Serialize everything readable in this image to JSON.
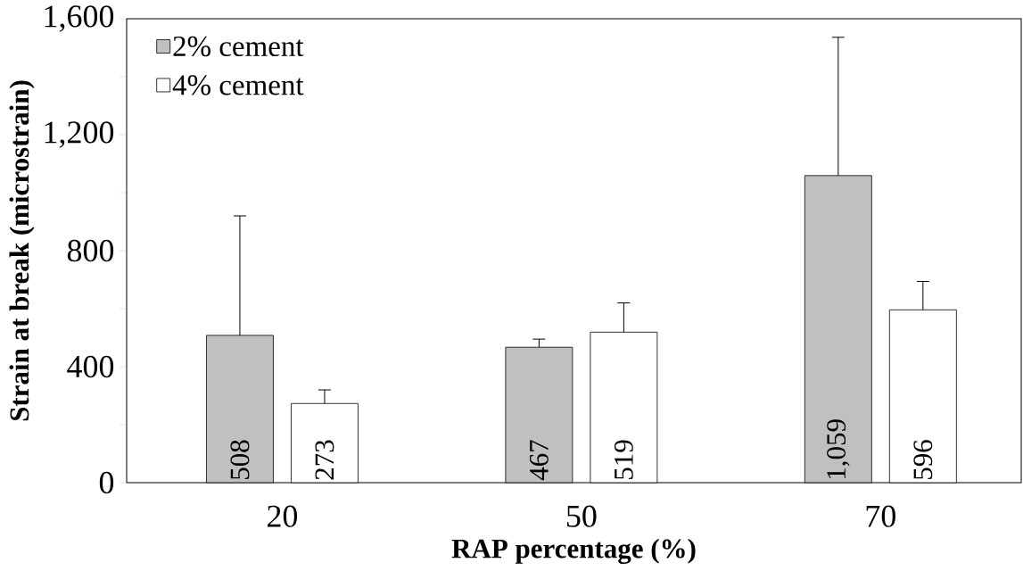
{
  "chart_data": {
    "type": "bar",
    "xlabel": "RAP percentage (%)",
    "ylabel": "Strain at break (microstrain)",
    "categories": [
      "20",
      "50",
      "70"
    ],
    "series": [
      {
        "name": "2% cement",
        "color": "#c0c0c0",
        "values": [
          508,
          467,
          1059
        ],
        "value_labels": [
          "508",
          "467",
          "1,059"
        ],
        "errors": [
          [
            508,
            920
          ],
          [
            467,
            495
          ],
          [
            1059,
            1536
          ]
        ]
      },
      {
        "name": "4% cement",
        "color": "#ffffff",
        "values": [
          273,
          519,
          596
        ],
        "value_labels": [
          "273",
          "519",
          "596"
        ],
        "errors": [
          [
            273,
            320
          ],
          [
            519,
            620
          ],
          [
            596,
            694
          ]
        ]
      }
    ],
    "ylim": [
      0,
      1600
    ],
    "yticks": [
      0,
      {
        "value": 200,
        "label": null
      },
      400,
      {
        "value": 600,
        "label": null
      },
      {
        "value": 800,
        "label": "800"
      },
      {
        "value": 1000,
        "label": null
      },
      {
        "value": 1200,
        "label": "1,200"
      },
      {
        "value": 1400,
        "label": null
      },
      {
        "value": 1600,
        "label": "1,600"
      }
    ],
    "grid": false,
    "legend": "top left"
  }
}
